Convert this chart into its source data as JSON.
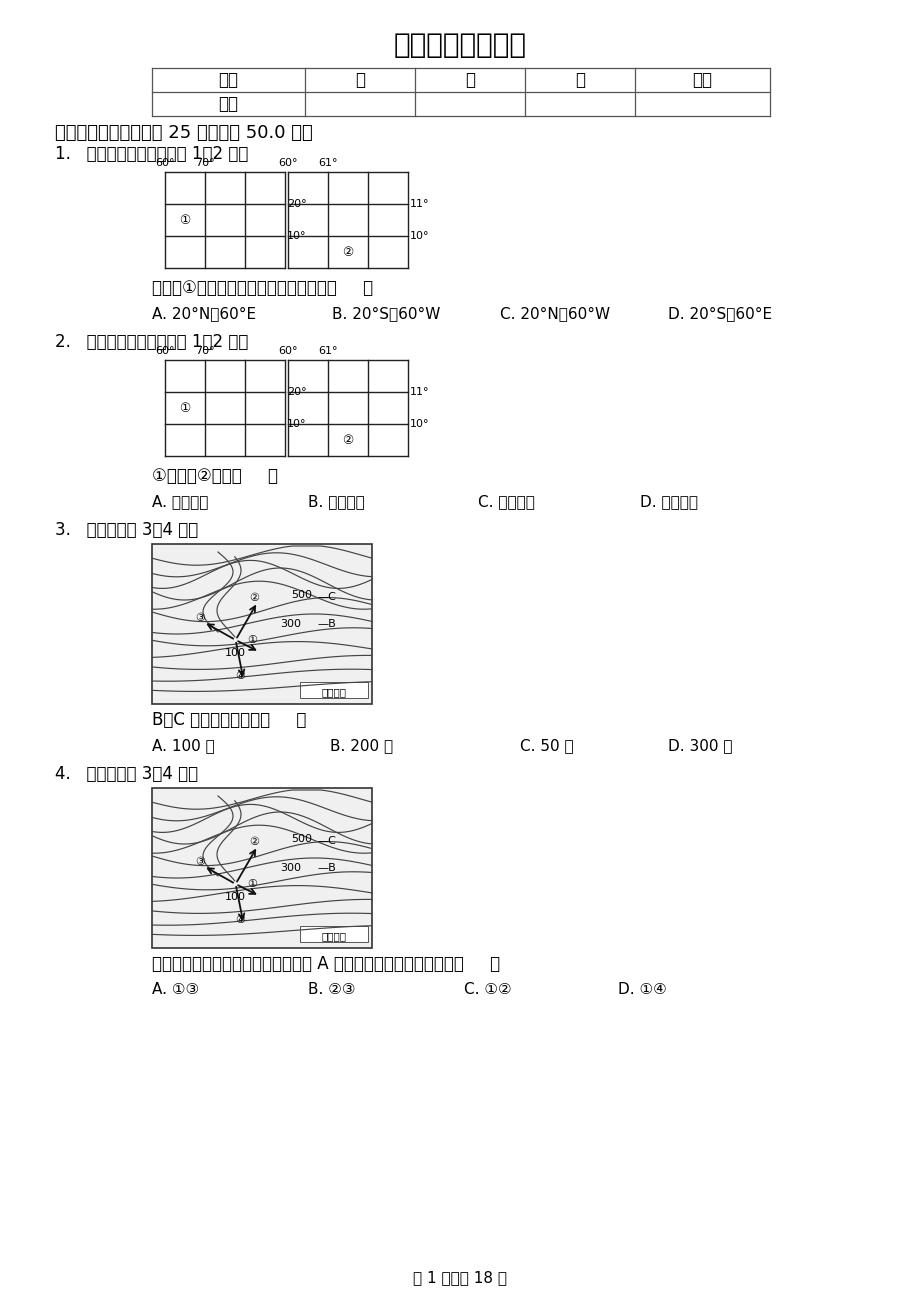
{
  "title": "中考地理模拟试卷",
  "bg_color": "#ffffff",
  "text_color": "#000000",
  "table_header": [
    "题号",
    "一",
    "二",
    "三",
    "总分"
  ],
  "table_row2": [
    "得分",
    "",
    "",
    "",
    ""
  ],
  "section1_title": "一、单选题（本大题共 25 小题，共 50.0 分）",
  "q1_stem": "1.   读经纬网示意图，完成 1～2 题。",
  "q1_question": "关于点①的经纬度位置，表示正确的是（     ）",
  "q1_options": [
    "A. 20°N、60°E",
    "B. 20°S、60°W",
    "C. 20°N、60°W",
    "D. 20°S、60°E"
  ],
  "q2_stem": "2.   读经纬网示意图，完成 1～2 题。",
  "q2_question": "①地位于②地的（     ）",
  "q2_options": [
    "A. 正南方向",
    "B. 正北方向",
    "C. 东北方向",
    "D. 西南方向"
  ],
  "q3_stem": "3.   读图，回答 3～4 题。",
  "q3_question": "B、C 间的相对高度是（     ）",
  "q3_options": [
    "A. 100 米",
    "B. 200 米",
    "C. 50 米",
    "D. 300 米"
  ],
  "q4_stem": "4.   读图，回答 3～4 题。",
  "q4_question": "当该地山洪暴发时，小明位于图中的 A 处，小明正确的逃生方向是（     ）",
  "q4_options": [
    "A. ①③",
    "B. ②③",
    "C. ①②",
    "D. ①④"
  ],
  "footer": "第 1 页，共 18 页"
}
